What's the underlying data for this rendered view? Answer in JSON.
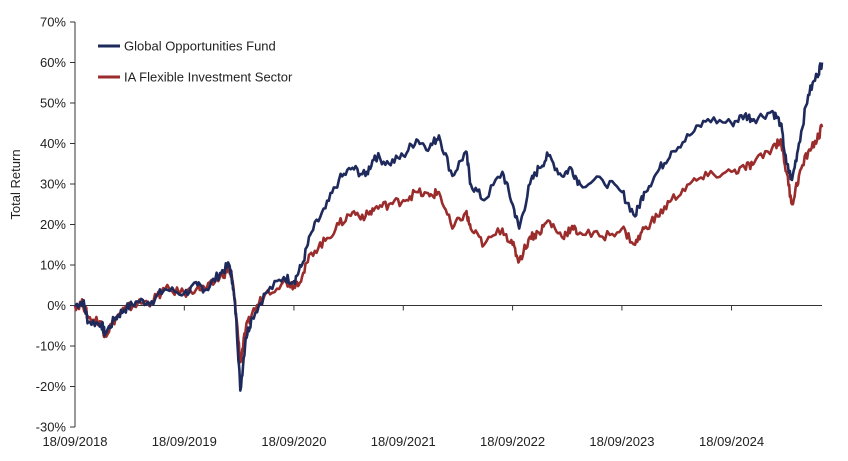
{
  "chart_data": {
    "type": "line",
    "title": "",
    "xlabel": "",
    "ylabel": "Total Return",
    "x_tick_labels": [
      "18/09/2018",
      "18/09/2019",
      "18/09/2020",
      "18/09/2021",
      "18/09/2022",
      "18/09/2023",
      "18/09/2024"
    ],
    "x_range": [
      "18/09/2018",
      "17/07/2025"
    ],
    "y_range": [
      -30,
      70
    ],
    "y_unit": "%",
    "y_ticks": [
      -30,
      -20,
      -10,
      0,
      10,
      20,
      30,
      40,
      50,
      60,
      70
    ],
    "y_tick_labels": [
      "-30%",
      "-20%",
      "-10%",
      "0%",
      "10%",
      "20%",
      "30%",
      "40%",
      "50%",
      "60%",
      "70%"
    ],
    "grid": false,
    "legend_position": "top-left",
    "series": [
      {
        "name": "Global Opportunities Fund",
        "color": "#1f2a5c",
        "points": [
          [
            "18/09/2018",
            0
          ],
          [
            "15/10/2018",
            1
          ],
          [
            "01/11/2018",
            -4
          ],
          [
            "15/12/2018",
            -4.5
          ],
          [
            "27/12/2018",
            -7
          ],
          [
            "01/02/2019",
            -3
          ],
          [
            "01/03/2019",
            -1
          ],
          [
            "15/04/2019",
            1
          ],
          [
            "01/06/2019",
            1
          ],
          [
            "15/07/2019",
            4
          ],
          [
            "18/09/2019",
            3
          ],
          [
            "01/11/2019",
            5
          ],
          [
            "01/12/2019",
            4
          ],
          [
            "15/01/2020",
            8
          ],
          [
            "15/02/2020",
            10
          ],
          [
            "26/02/2020",
            6
          ],
          [
            "10/03/2020",
            -4
          ],
          [
            "23/03/2020",
            -21
          ],
          [
            "10/04/2020",
            -8
          ],
          [
            "01/05/2020",
            -3
          ],
          [
            "15/06/2020",
            3
          ],
          [
            "15/08/2020",
            7
          ],
          [
            "18/09/2020",
            6
          ],
          [
            "15/10/2020",
            10
          ],
          [
            "15/11/2020",
            18
          ],
          [
            "01/01/2021",
            24
          ],
          [
            "15/02/2021",
            31
          ],
          [
            "01/04/2021",
            34
          ],
          [
            "15/05/2021",
            32
          ],
          [
            "15/06/2021",
            37
          ],
          [
            "01/08/2021",
            35
          ],
          [
            "18/09/2021",
            37
          ],
          [
            "01/11/2021",
            41
          ],
          [
            "15/12/2021",
            39
          ],
          [
            "15/01/2022",
            42
          ],
          [
            "01/03/2022",
            32
          ],
          [
            "15/04/2022",
            38
          ],
          [
            "01/05/2022",
            30
          ],
          [
            "15/06/2022",
            26
          ],
          [
            "15/08/2022",
            33
          ],
          [
            "18/09/2022",
            25
          ],
          [
            "10/10/2022",
            19
          ],
          [
            "15/11/2022",
            30
          ],
          [
            "15/12/2022",
            34
          ],
          [
            "15/01/2023",
            37
          ],
          [
            "01/03/2023",
            32
          ],
          [
            "01/04/2023",
            34
          ],
          [
            "01/05/2023",
            30
          ],
          [
            "15/07/2023",
            31
          ],
          [
            "18/09/2023",
            28
          ],
          [
            "01/11/2023",
            22
          ],
          [
            "01/12/2023",
            28
          ],
          [
            "15/01/2024",
            33
          ],
          [
            "01/03/2024",
            38
          ],
          [
            "01/05/2024",
            42
          ],
          [
            "01/07/2024",
            46
          ],
          [
            "18/09/2024",
            45
          ],
          [
            "01/11/2024",
            47
          ],
          [
            "01/12/2024",
            46
          ],
          [
            "01/02/2025",
            48
          ],
          [
            "01/03/2025",
            45
          ],
          [
            "20/03/2025",
            35
          ],
          [
            "08/04/2025",
            31
          ],
          [
            "01/05/2025",
            40
          ],
          [
            "01/06/2025",
            52
          ],
          [
            "01/07/2025",
            57
          ],
          [
            "17/07/2025",
            60
          ]
        ]
      },
      {
        "name": "IA Flexible Investment Sector",
        "color": "#9b2c2c",
        "points": [
          [
            "18/09/2018",
            0
          ],
          [
            "15/10/2018",
            0.5
          ],
          [
            "01/11/2018",
            -3
          ],
          [
            "15/12/2018",
            -4
          ],
          [
            "27/12/2018",
            -7.5
          ],
          [
            "01/02/2019",
            -3
          ],
          [
            "01/03/2019",
            -1
          ],
          [
            "15/04/2019",
            0.5
          ],
          [
            "01/06/2019",
            1
          ],
          [
            "15/07/2019",
            4
          ],
          [
            "18/09/2019",
            3
          ],
          [
            "01/11/2019",
            4.5
          ],
          [
            "01/12/2019",
            4
          ],
          [
            "15/01/2020",
            7
          ],
          [
            "15/02/2020",
            9
          ],
          [
            "26/02/2020",
            6
          ],
          [
            "10/03/2020",
            -3
          ],
          [
            "23/03/2020",
            -14
          ],
          [
            "10/04/2020",
            -6
          ],
          [
            "01/05/2020",
            -2
          ],
          [
            "15/06/2020",
            3
          ],
          [
            "15/08/2020",
            6
          ],
          [
            "18/09/2020",
            5
          ],
          [
            "15/10/2020",
            7
          ],
          [
            "15/11/2020",
            13
          ],
          [
            "01/01/2021",
            16
          ],
          [
            "15/02/2021",
            20
          ],
          [
            "01/04/2021",
            23
          ],
          [
            "15/05/2021",
            22
          ],
          [
            "15/06/2021",
            24
          ],
          [
            "01/08/2021",
            25
          ],
          [
            "18/09/2021",
            26
          ],
          [
            "01/11/2021",
            28
          ],
          [
            "15/12/2021",
            27
          ],
          [
            "15/01/2022",
            28
          ],
          [
            "01/03/2022",
            19
          ],
          [
            "15/04/2022",
            23
          ],
          [
            "01/05/2022",
            19
          ],
          [
            "15/06/2022",
            15
          ],
          [
            "15/08/2022",
            19
          ],
          [
            "18/09/2022",
            15
          ],
          [
            "10/10/2022",
            11
          ],
          [
            "15/11/2022",
            17
          ],
          [
            "15/12/2022",
            18
          ],
          [
            "15/01/2023",
            21
          ],
          [
            "01/03/2023",
            17
          ],
          [
            "01/04/2023",
            19
          ],
          [
            "01/05/2023",
            18
          ],
          [
            "15/07/2023",
            17
          ],
          [
            "18/09/2023",
            19
          ],
          [
            "01/11/2023",
            15
          ],
          [
            "01/12/2023",
            19
          ],
          [
            "15/01/2024",
            22
          ],
          [
            "01/03/2024",
            26
          ],
          [
            "01/05/2024",
            30
          ],
          [
            "01/07/2024",
            32
          ],
          [
            "18/09/2024",
            33
          ],
          [
            "01/11/2024",
            34
          ],
          [
            "01/12/2024",
            35
          ],
          [
            "01/02/2025",
            39
          ],
          [
            "01/03/2025",
            41
          ],
          [
            "20/03/2025",
            33
          ],
          [
            "08/04/2025",
            25
          ],
          [
            "01/05/2025",
            32
          ],
          [
            "01/06/2025",
            38
          ],
          [
            "01/07/2025",
            41
          ],
          [
            "17/07/2025",
            44
          ]
        ]
      }
    ]
  }
}
